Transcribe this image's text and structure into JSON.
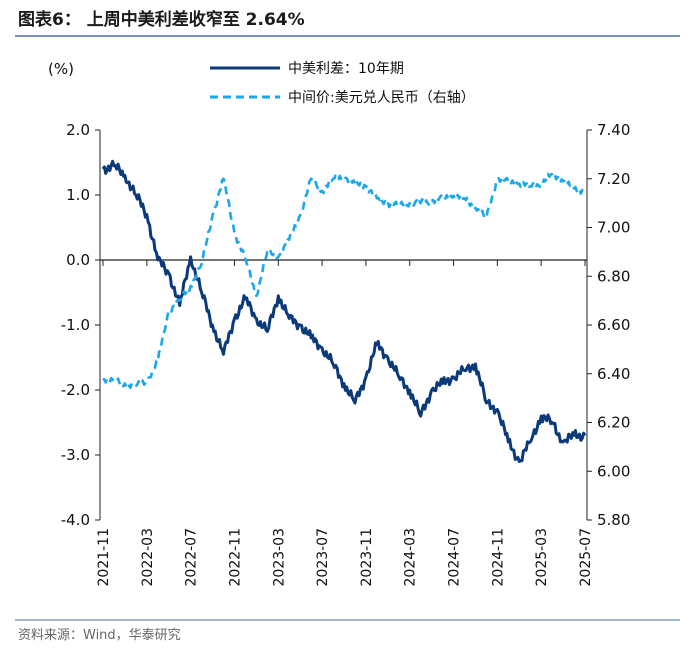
{
  "header": {
    "title": "图表6：  上周中美利差收窄至 2.64%",
    "rule_color": "#4d6fa3"
  },
  "footer": {
    "source": "资料来源：Wind，华泰研究"
  },
  "chart_data": {
    "type": "line",
    "title": "",
    "ylabel_left": "(%)",
    "ylim_left": [
      -4.0,
      2.0
    ],
    "yticks_left": [
      "2.0",
      "1.0",
      "0.0",
      "-1.0",
      "-2.0",
      "-3.0",
      "-4.0"
    ],
    "ylim_right": [
      5.8,
      7.4
    ],
    "yticks_right": [
      "7.40",
      "7.20",
      "7.00",
      "6.80",
      "6.60",
      "6.40",
      "6.20",
      "6.00",
      "5.80"
    ],
    "xticks": [
      "2021-11",
      "2022-03",
      "2022-07",
      "2022-11",
      "2023-03",
      "2023-07",
      "2023-11",
      "2024-03",
      "2024-07",
      "2024-11",
      "2025-03",
      "2025-07"
    ],
    "x": [
      "2021-11",
      "2021-12",
      "2022-01",
      "2022-02",
      "2022-03",
      "2022-04",
      "2022-05",
      "2022-06",
      "2022-07",
      "2022-08",
      "2022-09",
      "2022-10",
      "2022-11",
      "2022-12",
      "2023-01",
      "2023-02",
      "2023-03",
      "2023-04",
      "2023-05",
      "2023-06",
      "2023-07",
      "2023-08",
      "2023-09",
      "2023-10",
      "2023-11",
      "2023-12",
      "2024-01",
      "2024-02",
      "2024-03",
      "2024-04",
      "2024-05",
      "2024-06",
      "2024-07",
      "2024-08",
      "2024-09",
      "2024-10",
      "2024-11",
      "2024-12",
      "2025-01",
      "2025-02",
      "2025-03",
      "2025-04",
      "2025-05",
      "2025-06",
      "2025-07"
    ],
    "legend_placement": "top",
    "grid": false,
    "series": [
      {
        "name": "中美利差：10年期",
        "axis": "left",
        "color": "#0b3a7a",
        "style": "solid",
        "values": [
          1.4,
          1.45,
          1.3,
          1.0,
          0.7,
          0.0,
          -0.2,
          -0.7,
          0.05,
          -0.5,
          -1.0,
          -1.45,
          -0.9,
          -0.6,
          -0.9,
          -1.1,
          -0.55,
          -0.9,
          -1.0,
          -1.2,
          -1.35,
          -1.6,
          -1.9,
          -2.2,
          -1.8,
          -1.3,
          -1.5,
          -1.8,
          -2.0,
          -2.4,
          -2.0,
          -1.9,
          -1.8,
          -1.7,
          -1.6,
          -2.2,
          -2.3,
          -2.8,
          -3.1,
          -2.8,
          -2.4,
          -2.5,
          -2.8,
          -2.7,
          -2.7
        ]
      },
      {
        "name": "中间价:美元兑人民币（右轴）",
        "axis": "right",
        "color": "#1aa7ec",
        "style": "dashed",
        "values": [
          6.38,
          6.37,
          6.36,
          6.35,
          6.37,
          6.45,
          6.66,
          6.7,
          6.76,
          6.85,
          7.05,
          7.2,
          6.98,
          6.87,
          6.72,
          6.9,
          6.88,
          6.95,
          7.05,
          7.2,
          7.15,
          7.2,
          7.21,
          7.18,
          7.17,
          7.12,
          7.1,
          7.09,
          7.1,
          7.1,
          7.11,
          7.12,
          7.13,
          7.12,
          7.08,
          7.04,
          7.2,
          7.19,
          7.18,
          7.17,
          7.18,
          7.22,
          7.19,
          7.16,
          7.15
        ]
      }
    ]
  }
}
